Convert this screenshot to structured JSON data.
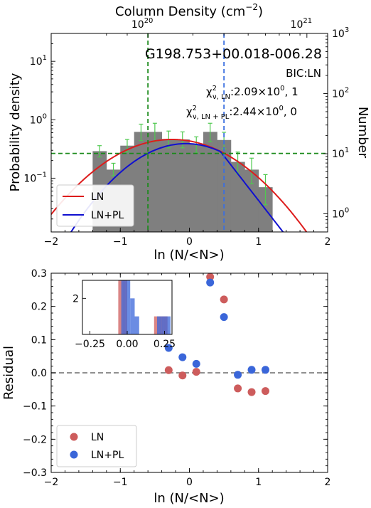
{
  "chart_data": [
    {
      "type": "bar",
      "name": "pdf",
      "title": "",
      "top_xlabel": "Column Density (cm",
      "top_xlabel_exp": "−2",
      "top_xlabel_close": ")",
      "xlabel": "ln (N/<N>)",
      "ylabel": "Probability density",
      "ylabel_right": "Number",
      "xlim": [
        -2,
        2
      ],
      "ylim_log": [
        0.012,
        30
      ],
      "yscale": "log",
      "right_ylim_log": [
        0.5,
        1000
      ],
      "x_ticks": [
        "−2",
        "−1",
        "0",
        "1",
        "2"
      ],
      "x_tick_values": [
        -2,
        -1,
        0,
        1,
        2
      ],
      "y_ticks": [
        {
          "base": "10",
          "exp": "−1",
          "v": 0.1
        },
        {
          "base": "10",
          "exp": "0",
          "v": 1
        },
        {
          "base": "10",
          "exp": "1",
          "v": 10
        }
      ],
      "right_ticks": [
        {
          "base": "10",
          "exp": "0",
          "v": 1
        },
        {
          "base": "10",
          "exp": "1",
          "v": 10
        },
        {
          "base": "10",
          "exp": "2",
          "v": 100
        },
        {
          "base": "10",
          "exp": "3",
          "v": 1000
        }
      ],
      "top_ticks": [
        {
          "base": "10",
          "exp": "20",
          "x": -0.6
        },
        {
          "base": "10",
          "exp": "21",
          "x": 1.7
        }
      ],
      "bins": {
        "edges": [
          -1.4,
          -1.2,
          -1.0,
          -0.8,
          -0.6,
          -0.4,
          -0.2,
          0.0,
          0.2,
          0.4,
          0.6,
          0.8,
          1.0,
          1.2
        ],
        "values": [
          0.29,
          0.14,
          0.36,
          0.62,
          0.62,
          0.47,
          0.46,
          0.38,
          0.62,
          0.45,
          0.19,
          0.14,
          0.07
        ],
        "err_low": [
          0.06,
          0.03,
          0.08,
          0.18,
          0.2,
          0.14,
          0.13,
          0.11,
          0.2,
          0.13,
          0.07,
          0.06,
          0.035
        ],
        "err_high": [
          0.07,
          0.04,
          0.1,
          0.22,
          0.25,
          0.17,
          0.16,
          0.13,
          0.25,
          0.16,
          0.09,
          0.08,
          0.045
        ]
      },
      "object_name": "G198.753+00.018-006.28",
      "bic_text": "BIC:LN",
      "chi_ln_prefix": "χ",
      "chi_ln_sup": "2",
      "chi_ln_sub": "ν, LN",
      "chi_ln_value": ":2.09×10",
      "chi_ln_exp": "0",
      "chi_ln_tail": ", 1",
      "chi_lnpl_prefix": "χ",
      "chi_lnpl_sup": "2",
      "chi_lnpl_sub": "ν, LN + PL",
      "chi_lnpl_value": ":2.44×10",
      "chi_lnpl_exp": "0",
      "chi_lnpl_tail": ", 0",
      "lognormal_fit": {
        "peak": 0.46,
        "mu": -0.25,
        "sigma": 0.72
      },
      "powerlaw_fit": {
        "peak": 0.39,
        "mu": -0.05,
        "sigma": 0.63,
        "break_x": 0.45,
        "slope": -3.5
      },
      "hline_y": 0.265,
      "vline_green_x": -0.6,
      "vline_blue_x": 0.5,
      "legend": [
        {
          "label": "LN",
          "color": "#dd1c1c"
        },
        {
          "label": "LN+PL",
          "color": "#1010d0"
        }
      ],
      "legend_position": "lower-left"
    },
    {
      "type": "scatter",
      "name": "residual",
      "xlabel": "ln (N/<N>)",
      "ylabel": "Residual",
      "xlim": [
        -2,
        2
      ],
      "ylim": [
        -0.3,
        0.3
      ],
      "x_ticks": [
        "−2",
        "−1",
        "0",
        "1",
        "2"
      ],
      "x_tick_values": [
        -2,
        -1,
        0,
        1,
        2
      ],
      "y_ticks": [
        "−0.3",
        "−0.2",
        "−0.1",
        "0.0",
        "0.1",
        "0.2",
        "0.3"
      ],
      "y_tick_values": [
        -0.3,
        -0.2,
        -0.1,
        0.0,
        0.1,
        0.2,
        0.3
      ],
      "hline_y": 0.0,
      "series": [
        {
          "name": "LN",
          "color": "#cd5c5c",
          "x": [
            -0.3,
            -0.1,
            0.1,
            0.3,
            0.5,
            0.7,
            0.9,
            1.1
          ],
          "y": [
            0.008,
            -0.008,
            0.003,
            0.289,
            0.221,
            -0.047,
            -0.058,
            -0.055
          ]
        },
        {
          "name": "LN+PL",
          "color": "#3a66d9",
          "x": [
            -0.3,
            -0.1,
            0.1,
            0.3,
            0.5,
            0.7,
            0.9,
            1.1
          ],
          "y": [
            0.075,
            0.047,
            0.027,
            0.272,
            0.168,
            -0.006,
            0.009,
            0.009
          ]
        }
      ],
      "legend_position": "lower-left",
      "inset": {
        "type": "bar",
        "xlim": [
          -0.3,
          0.3
        ],
        "ylim": [
          0,
          3
        ],
        "x_ticks": [
          "−0.25",
          "0.00",
          "0.25"
        ],
        "x_tick_values": [
          -0.25,
          0.0,
          0.25
        ],
        "y_ticks": [
          "2"
        ],
        "y_tick_values": [
          2
        ],
        "series": [
          {
            "name": "LN",
            "color": "#cd5c5c",
            "edges": [
              -0.06,
              -0.03,
              0.0,
              0.15,
              0.18,
              0.21,
              0.24,
              0.27,
              0.3
            ],
            "values": [
              3,
              3,
              0,
              0,
              1,
              1,
              1,
              0
            ]
          },
          {
            "name": "LN+PL",
            "color": "#3a66d9",
            "edges": [
              -0.04,
              -0.01,
              0.02,
              0.05,
              0.08,
              0.11,
              0.14,
              0.17,
              0.2,
              0.23,
              0.26,
              0.29
            ],
            "values": [
              3,
              3,
              2,
              1,
              0,
              0,
              0,
              0,
              1,
              1,
              1
            ]
          }
        ]
      }
    }
  ]
}
